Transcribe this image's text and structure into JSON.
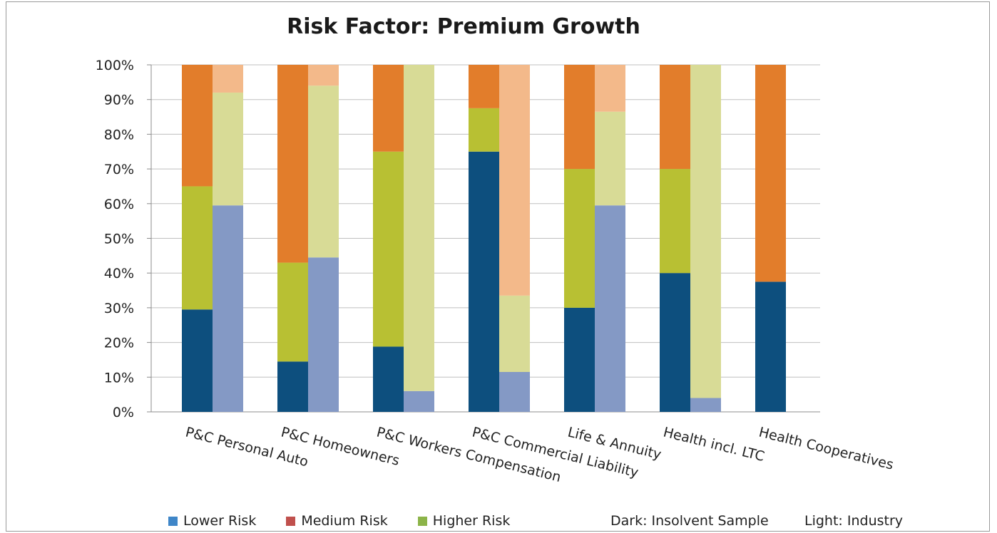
{
  "chart_data": {
    "type": "bar",
    "stacked": true,
    "title": "Risk Factor: Premium Growth",
    "categories": [
      "P&C Personal Auto",
      "P&C Homeowners",
      "P&C Workers Compensation",
      "P&C Commercial Liability",
      "Life & Annuity",
      "Health incl. LTC",
      "Health Cooperatives"
    ],
    "ylim": [
      0,
      100
    ],
    "yticks": [
      "0%",
      "10%",
      "20%",
      "30%",
      "40%",
      "50%",
      "60%",
      "70%",
      "80%",
      "90%",
      "100%"
    ],
    "grid": true,
    "series": [
      {
        "name": "Lower Risk",
        "color": "#0d4f7e",
        "values": [
          29.5,
          14.5,
          18.8,
          75,
          30,
          40,
          37.5
        ]
      },
      {
        "name": "Higher Risk",
        "color": "#b8c033",
        "values": [
          35.5,
          28.5,
          56.2,
          12.5,
          40,
          30,
          0
        ]
      },
      {
        "name": "Medium Risk",
        "color": "#e27d2b",
        "values": [
          35,
          57,
          25,
          12.5,
          30,
          30,
          62.5
        ]
      }
    ],
    "industry_series": [
      {
        "color": "#8499c5",
        "values": [
          59.5,
          44.5,
          6,
          11.5,
          59.5,
          4,
          0
        ]
      },
      {
        "color": "#d8db96",
        "values": [
          32.5,
          49.5,
          94,
          22,
          27,
          96,
          0
        ]
      },
      {
        "color": "#f3b98a",
        "values": [
          8,
          6,
          0,
          66.5,
          13.5,
          0,
          0
        ]
      }
    ]
  },
  "legend": {
    "items": [
      {
        "label": "Lower Risk",
        "color": "#3f86c8"
      },
      {
        "label": "Medium Risk",
        "color": "#c0504d"
      },
      {
        "label": "Higher Risk",
        "color": "#8cb449"
      }
    ],
    "note_dark": "Dark: Insolvent Sample",
    "note_light": "Light: Industry"
  }
}
